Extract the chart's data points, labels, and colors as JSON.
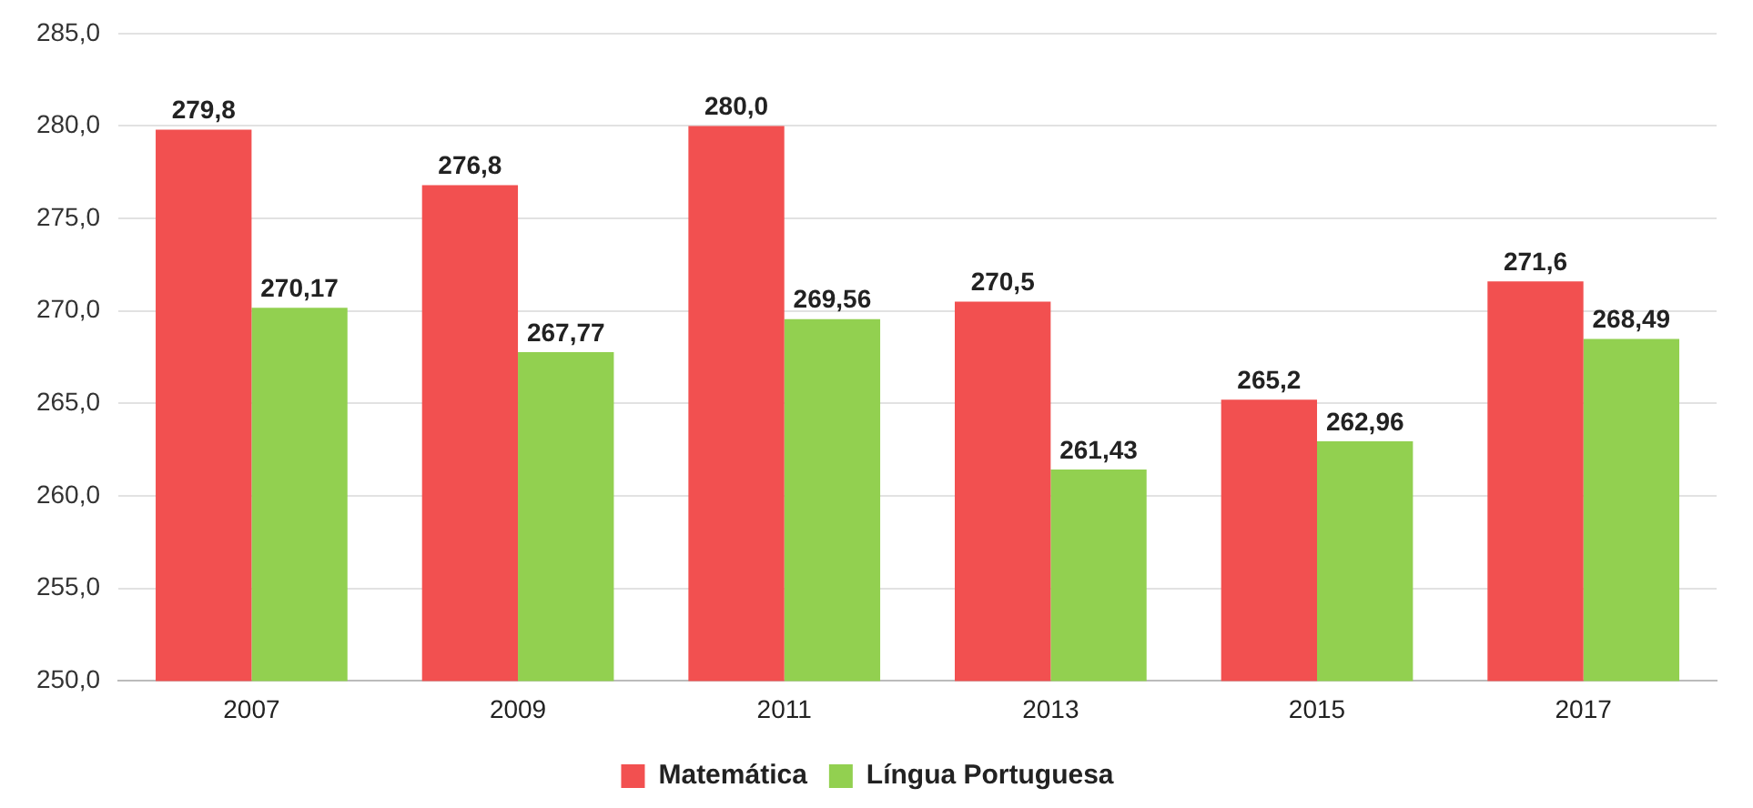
{
  "chart_data": {
    "type": "bar",
    "categories": [
      "2007",
      "2009",
      "2011",
      "2013",
      "2015",
      "2017"
    ],
    "series": [
      {
        "name": "Matemática",
        "color": "#f25050",
        "values": [
          279.8,
          276.8,
          280.0,
          270.5,
          265.2,
          271.6
        ],
        "value_labels": [
          "279,8",
          "276,8",
          "280,0",
          "270,5",
          "265,2",
          "271,6"
        ]
      },
      {
        "name": "Língua Portuguesa",
        "color": "#92d050",
        "values": [
          270.17,
          267.77,
          269.56,
          261.43,
          262.96,
          268.49
        ],
        "value_labels": [
          "270,17",
          "267,77",
          "269,56",
          "261,43",
          "262,96",
          "268,49"
        ]
      }
    ],
    "ylim": [
      250,
      285
    ],
    "yticks": [
      {
        "value": 250,
        "label": "250,0"
      },
      {
        "value": 255,
        "label": "255,0"
      },
      {
        "value": 260,
        "label": "260,0"
      },
      {
        "value": 265,
        "label": "265,0"
      },
      {
        "value": 270,
        "label": "270,0"
      },
      {
        "value": 275,
        "label": "275,0"
      },
      {
        "value": 280,
        "label": "280,0"
      },
      {
        "value": 285,
        "label": "285,0"
      }
    ],
    "grid": "y",
    "legend": "bottom"
  }
}
